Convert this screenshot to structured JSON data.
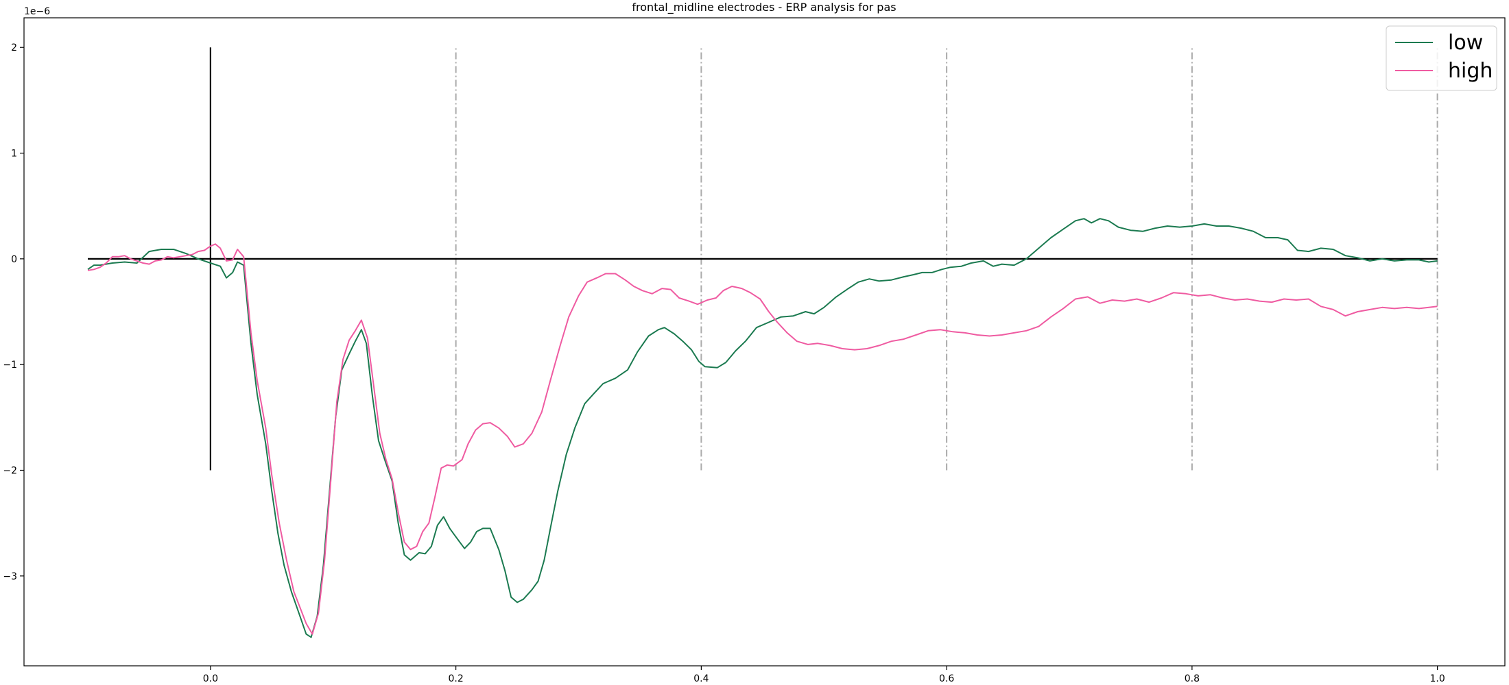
{
  "chart_data": {
    "type": "line",
    "title": "frontal_midline electrodes - ERP analysis for pas",
    "xlabel": "",
    "ylabel": "",
    "offset_label": "1e−6",
    "xlim": [
      -0.152,
      1.055
    ],
    "ylim": [
      -3.85,
      2.28
    ],
    "x_ticks": [
      0.0,
      0.2,
      0.4,
      0.6,
      0.8,
      1.0
    ],
    "x_tick_labels": [
      "0.0",
      "0.2",
      "0.4",
      "0.6",
      "0.8",
      "1.0"
    ],
    "y_ticks": [
      2,
      1,
      0,
      -1,
      -2,
      -3
    ],
    "y_tick_labels": [
      "2",
      "1",
      "0",
      "−1",
      "−2",
      "−3"
    ],
    "grid": false,
    "legend_position": "top-right",
    "reference_lines": {
      "zero_line": {
        "y": 0,
        "x_from": -0.1,
        "x_to": 1.0,
        "color": "#000000"
      },
      "onset_line": {
        "x": 0,
        "y_from": -2,
        "y_to": 2,
        "color": "#000000"
      },
      "markers": [
        0.2,
        0.4,
        0.6,
        0.8,
        1.0
      ],
      "marker_range": [
        -2,
        2
      ],
      "marker_color": "#aaaaaa"
    },
    "series": [
      {
        "name": "low",
        "color": "#1b7a50",
        "points": [
          [
            -0.1,
            -0.1
          ],
          [
            -0.095,
            -0.06
          ],
          [
            -0.09,
            -0.06
          ],
          [
            -0.08,
            -0.04
          ],
          [
            -0.07,
            -0.03
          ],
          [
            -0.06,
            -0.04
          ],
          [
            -0.05,
            0.07
          ],
          [
            -0.04,
            0.09
          ],
          [
            -0.03,
            0.09
          ],
          [
            -0.02,
            0.05
          ],
          [
            -0.01,
            0.0
          ],
          [
            0.0,
            -0.04
          ],
          [
            0.008,
            -0.07
          ],
          [
            0.013,
            -0.18
          ],
          [
            0.018,
            -0.13
          ],
          [
            0.022,
            -0.03
          ],
          [
            0.027,
            -0.06
          ],
          [
            0.033,
            -0.8
          ],
          [
            0.038,
            -1.28
          ],
          [
            0.045,
            -1.75
          ],
          [
            0.05,
            -2.2
          ],
          [
            0.055,
            -2.6
          ],
          [
            0.06,
            -2.9
          ],
          [
            0.066,
            -3.15
          ],
          [
            0.072,
            -3.35
          ],
          [
            0.078,
            -3.55
          ],
          [
            0.082,
            -3.58
          ],
          [
            0.087,
            -3.38
          ],
          [
            0.092,
            -2.9
          ],
          [
            0.097,
            -2.2
          ],
          [
            0.102,
            -1.5
          ],
          [
            0.107,
            -1.05
          ],
          [
            0.113,
            -0.9
          ],
          [
            0.118,
            -0.78
          ],
          [
            0.123,
            -0.67
          ],
          [
            0.127,
            -0.8
          ],
          [
            0.132,
            -1.3
          ],
          [
            0.137,
            -1.72
          ],
          [
            0.142,
            -1.9
          ],
          [
            0.148,
            -2.1
          ],
          [
            0.153,
            -2.5
          ],
          [
            0.158,
            -2.8
          ],
          [
            0.163,
            -2.85
          ],
          [
            0.17,
            -2.78
          ],
          [
            0.175,
            -2.79
          ],
          [
            0.18,
            -2.72
          ],
          [
            0.185,
            -2.52
          ],
          [
            0.19,
            -2.44
          ],
          [
            0.195,
            -2.55
          ],
          [
            0.2,
            -2.63
          ],
          [
            0.207,
            -2.74
          ],
          [
            0.212,
            -2.68
          ],
          [
            0.217,
            -2.58
          ],
          [
            0.222,
            -2.55
          ],
          [
            0.228,
            -2.55
          ],
          [
            0.235,
            -2.75
          ],
          [
            0.24,
            -2.95
          ],
          [
            0.245,
            -3.2
          ],
          [
            0.25,
            -3.25
          ],
          [
            0.255,
            -3.22
          ],
          [
            0.262,
            -3.13
          ],
          [
            0.267,
            -3.05
          ],
          [
            0.272,
            -2.85
          ],
          [
            0.277,
            -2.55
          ],
          [
            0.283,
            -2.2
          ],
          [
            0.29,
            -1.85
          ],
          [
            0.297,
            -1.6
          ],
          [
            0.305,
            -1.37
          ],
          [
            0.312,
            -1.28
          ],
          [
            0.32,
            -1.18
          ],
          [
            0.33,
            -1.13
          ],
          [
            0.34,
            -1.05
          ],
          [
            0.348,
            -0.88
          ],
          [
            0.357,
            -0.73
          ],
          [
            0.365,
            -0.67
          ],
          [
            0.37,
            -0.65
          ],
          [
            0.378,
            -0.71
          ],
          [
            0.385,
            -0.78
          ],
          [
            0.392,
            -0.86
          ],
          [
            0.398,
            -0.97
          ],
          [
            0.403,
            -1.02
          ],
          [
            0.413,
            -1.03
          ],
          [
            0.42,
            -0.98
          ],
          [
            0.428,
            -0.87
          ],
          [
            0.436,
            -0.78
          ],
          [
            0.445,
            -0.65
          ],
          [
            0.455,
            -0.6
          ],
          [
            0.465,
            -0.55
          ],
          [
            0.475,
            -0.54
          ],
          [
            0.485,
            -0.5
          ],
          [
            0.492,
            -0.52
          ],
          [
            0.5,
            -0.46
          ],
          [
            0.51,
            -0.36
          ],
          [
            0.52,
            -0.28
          ],
          [
            0.528,
            -0.22
          ],
          [
            0.537,
            -0.19
          ],
          [
            0.545,
            -0.21
          ],
          [
            0.555,
            -0.2
          ],
          [
            0.565,
            -0.17
          ],
          [
            0.573,
            -0.15
          ],
          [
            0.58,
            -0.13
          ],
          [
            0.588,
            -0.13
          ],
          [
            0.596,
            -0.1
          ],
          [
            0.603,
            -0.08
          ],
          [
            0.612,
            -0.07
          ],
          [
            0.62,
            -0.04
          ],
          [
            0.63,
            -0.02
          ],
          [
            0.638,
            -0.07
          ],
          [
            0.645,
            -0.05
          ],
          [
            0.655,
            -0.06
          ],
          [
            0.665,
            0.0
          ],
          [
            0.675,
            0.1
          ],
          [
            0.685,
            0.2
          ],
          [
            0.695,
            0.28
          ],
          [
            0.705,
            0.36
          ],
          [
            0.712,
            0.38
          ],
          [
            0.718,
            0.34
          ],
          [
            0.725,
            0.38
          ],
          [
            0.732,
            0.36
          ],
          [
            0.74,
            0.3
          ],
          [
            0.75,
            0.27
          ],
          [
            0.76,
            0.26
          ],
          [
            0.77,
            0.29
          ],
          [
            0.78,
            0.31
          ],
          [
            0.79,
            0.3
          ],
          [
            0.8,
            0.31
          ],
          [
            0.81,
            0.33
          ],
          [
            0.82,
            0.31
          ],
          [
            0.83,
            0.31
          ],
          [
            0.84,
            0.29
          ],
          [
            0.85,
            0.26
          ],
          [
            0.86,
            0.2
          ],
          [
            0.87,
            0.2
          ],
          [
            0.878,
            0.18
          ],
          [
            0.886,
            0.08
          ],
          [
            0.895,
            0.07
          ],
          [
            0.905,
            0.1
          ],
          [
            0.915,
            0.09
          ],
          [
            0.925,
            0.03
          ],
          [
            0.935,
            0.01
          ],
          [
            0.945,
            -0.02
          ],
          [
            0.955,
            0.0
          ],
          [
            0.965,
            -0.02
          ],
          [
            0.975,
            -0.01
          ],
          [
            0.985,
            -0.01
          ],
          [
            0.993,
            -0.03
          ],
          [
            1.0,
            -0.02
          ]
        ]
      },
      {
        "name": "high",
        "color": "#ef5ba1",
        "points": [
          [
            -0.1,
            -0.11
          ],
          [
            -0.095,
            -0.1
          ],
          [
            -0.09,
            -0.08
          ],
          [
            -0.085,
            -0.04
          ],
          [
            -0.08,
            0.02
          ],
          [
            -0.075,
            0.02
          ],
          [
            -0.07,
            0.03
          ],
          [
            -0.065,
            0.0
          ],
          [
            -0.06,
            -0.02
          ],
          [
            -0.055,
            -0.04
          ],
          [
            -0.05,
            -0.05
          ],
          [
            -0.045,
            -0.02
          ],
          [
            -0.04,
            -0.01
          ],
          [
            -0.035,
            0.02
          ],
          [
            -0.03,
            0.01
          ],
          [
            -0.025,
            0.02
          ],
          [
            -0.02,
            0.03
          ],
          [
            -0.015,
            0.04
          ],
          [
            -0.01,
            0.07
          ],
          [
            -0.005,
            0.08
          ],
          [
            0.0,
            0.12
          ],
          [
            0.004,
            0.14
          ],
          [
            0.008,
            0.1
          ],
          [
            0.013,
            -0.02
          ],
          [
            0.018,
            -0.01
          ],
          [
            0.022,
            0.09
          ],
          [
            0.027,
            0.02
          ],
          [
            0.033,
            -0.7
          ],
          [
            0.038,
            -1.15
          ],
          [
            0.045,
            -1.6
          ],
          [
            0.05,
            -2.05
          ],
          [
            0.056,
            -2.5
          ],
          [
            0.062,
            -2.85
          ],
          [
            0.068,
            -3.15
          ],
          [
            0.073,
            -3.3
          ],
          [
            0.078,
            -3.45
          ],
          [
            0.083,
            -3.55
          ],
          [
            0.088,
            -3.35
          ],
          [
            0.093,
            -2.85
          ],
          [
            0.098,
            -2.1
          ],
          [
            0.103,
            -1.35
          ],
          [
            0.108,
            -0.95
          ],
          [
            0.113,
            -0.77
          ],
          [
            0.118,
            -0.68
          ],
          [
            0.123,
            -0.58
          ],
          [
            0.128,
            -0.75
          ],
          [
            0.133,
            -1.2
          ],
          [
            0.138,
            -1.65
          ],
          [
            0.143,
            -1.9
          ],
          [
            0.148,
            -2.08
          ],
          [
            0.153,
            -2.4
          ],
          [
            0.158,
            -2.68
          ],
          [
            0.163,
            -2.75
          ],
          [
            0.168,
            -2.72
          ],
          [
            0.173,
            -2.58
          ],
          [
            0.178,
            -2.5
          ],
          [
            0.183,
            -2.25
          ],
          [
            0.188,
            -1.98
          ],
          [
            0.193,
            -1.95
          ],
          [
            0.198,
            -1.96
          ],
          [
            0.205,
            -1.9
          ],
          [
            0.21,
            -1.75
          ],
          [
            0.216,
            -1.62
          ],
          [
            0.222,
            -1.56
          ],
          [
            0.228,
            -1.55
          ],
          [
            0.235,
            -1.6
          ],
          [
            0.242,
            -1.68
          ],
          [
            0.248,
            -1.78
          ],
          [
            0.255,
            -1.75
          ],
          [
            0.262,
            -1.65
          ],
          [
            0.27,
            -1.45
          ],
          [
            0.277,
            -1.15
          ],
          [
            0.285,
            -0.82
          ],
          [
            0.292,
            -0.55
          ],
          [
            0.3,
            -0.35
          ],
          [
            0.307,
            -0.22
          ],
          [
            0.315,
            -0.18
          ],
          [
            0.322,
            -0.14
          ],
          [
            0.33,
            -0.14
          ],
          [
            0.338,
            -0.2
          ],
          [
            0.345,
            -0.26
          ],
          [
            0.352,
            -0.3
          ],
          [
            0.36,
            -0.33
          ],
          [
            0.368,
            -0.28
          ],
          [
            0.375,
            -0.29
          ],
          [
            0.382,
            -0.37
          ],
          [
            0.39,
            -0.4
          ],
          [
            0.397,
            -0.43
          ],
          [
            0.405,
            -0.39
          ],
          [
            0.412,
            -0.37
          ],
          [
            0.418,
            -0.3
          ],
          [
            0.425,
            -0.26
          ],
          [
            0.433,
            -0.28
          ],
          [
            0.44,
            -0.32
          ],
          [
            0.448,
            -0.38
          ],
          [
            0.455,
            -0.5
          ],
          [
            0.462,
            -0.6
          ],
          [
            0.47,
            -0.7
          ],
          [
            0.478,
            -0.78
          ],
          [
            0.487,
            -0.81
          ],
          [
            0.495,
            -0.8
          ],
          [
            0.505,
            -0.82
          ],
          [
            0.515,
            -0.85
          ],
          [
            0.525,
            -0.86
          ],
          [
            0.535,
            -0.85
          ],
          [
            0.545,
            -0.82
          ],
          [
            0.555,
            -0.78
          ],
          [
            0.565,
            -0.76
          ],
          [
            0.575,
            -0.72
          ],
          [
            0.585,
            -0.68
          ],
          [
            0.595,
            -0.67
          ],
          [
            0.605,
            -0.69
          ],
          [
            0.615,
            -0.7
          ],
          [
            0.625,
            -0.72
          ],
          [
            0.635,
            -0.73
          ],
          [
            0.645,
            -0.72
          ],
          [
            0.655,
            -0.7
          ],
          [
            0.665,
            -0.68
          ],
          [
            0.675,
            -0.64
          ],
          [
            0.685,
            -0.55
          ],
          [
            0.695,
            -0.47
          ],
          [
            0.705,
            -0.38
          ],
          [
            0.715,
            -0.36
          ],
          [
            0.725,
            -0.42
          ],
          [
            0.735,
            -0.39
          ],
          [
            0.745,
            -0.4
          ],
          [
            0.755,
            -0.38
          ],
          [
            0.765,
            -0.41
          ],
          [
            0.775,
            -0.37
          ],
          [
            0.785,
            -0.32
          ],
          [
            0.795,
            -0.33
          ],
          [
            0.805,
            -0.35
          ],
          [
            0.815,
            -0.34
          ],
          [
            0.825,
            -0.37
          ],
          [
            0.835,
            -0.39
          ],
          [
            0.845,
            -0.38
          ],
          [
            0.855,
            -0.4
          ],
          [
            0.865,
            -0.41
          ],
          [
            0.875,
            -0.38
          ],
          [
            0.885,
            -0.39
          ],
          [
            0.895,
            -0.38
          ],
          [
            0.905,
            -0.45
          ],
          [
            0.915,
            -0.48
          ],
          [
            0.925,
            -0.54
          ],
          [
            0.935,
            -0.5
          ],
          [
            0.945,
            -0.48
          ],
          [
            0.955,
            -0.46
          ],
          [
            0.965,
            -0.47
          ],
          [
            0.975,
            -0.46
          ],
          [
            0.985,
            -0.47
          ],
          [
            0.993,
            -0.46
          ],
          [
            1.0,
            -0.45
          ]
        ]
      }
    ]
  }
}
